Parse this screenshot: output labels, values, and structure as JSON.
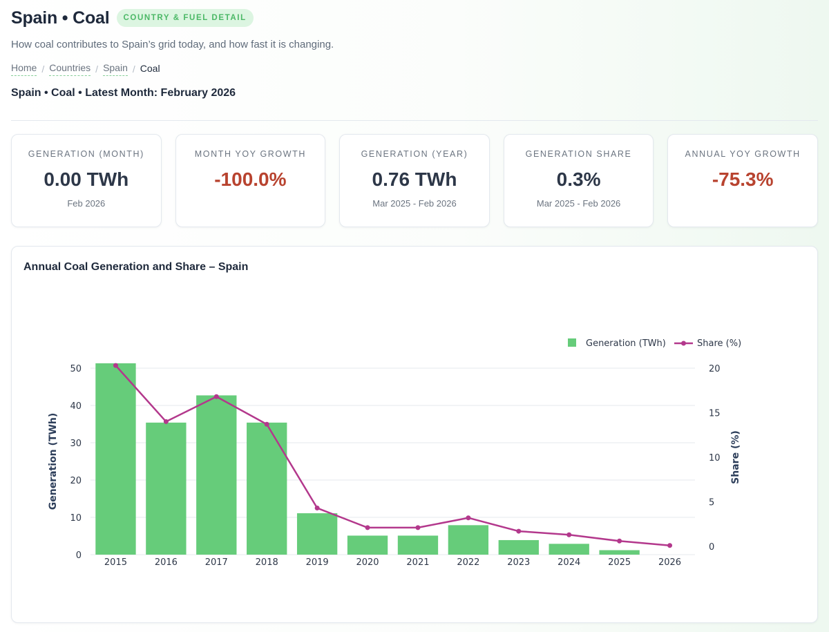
{
  "header": {
    "title": "Spain • Coal",
    "badge": "COUNTRY & FUEL DETAIL",
    "subtitle": "How coal contributes to Spain’s grid today, and how fast it is changing.",
    "breadcrumb": {
      "items": [
        "Home",
        "Countries",
        "Spain"
      ],
      "separator": "/",
      "current": "Coal"
    },
    "context": "Spain • Coal • Latest Month: February 2026"
  },
  "kpis": [
    {
      "label": "GENERATION (MONTH)",
      "value": "0.00 TWh",
      "sub": "Feb 2026",
      "tone": "neutral"
    },
    {
      "label": "MONTH YOY GROWTH",
      "value": "-100.0%",
      "sub": "",
      "tone": "negative"
    },
    {
      "label": "GENERATION (YEAR)",
      "value": "0.76 TWh",
      "sub": "Mar 2025 - Feb 2026",
      "tone": "neutral"
    },
    {
      "label": "GENERATION SHARE",
      "value": "0.3%",
      "sub": "Mar 2025 - Feb 2026",
      "tone": "neutral"
    },
    {
      "label": "ANNUAL YOY GROWTH",
      "value": "-75.3%",
      "sub": "",
      "tone": "negative"
    }
  ],
  "colors": {
    "bar": "#66cc7a",
    "line": "#b3388c",
    "negative": "#b8432f",
    "accent": "#4bb866"
  },
  "chart_data": {
    "type": "bar",
    "title": "Annual Coal Generation and Share – Spain",
    "categories": [
      "2015",
      "2016",
      "2017",
      "2018",
      "2019",
      "2020",
      "2021",
      "2022",
      "2023",
      "2024",
      "2025",
      "2026"
    ],
    "series": [
      {
        "name": "Generation (TWh)",
        "type": "bar",
        "axis": "left",
        "values": [
          51.3,
          35.4,
          42.7,
          35.4,
          11.1,
          5.1,
          5.1,
          7.9,
          3.9,
          2.9,
          1.2,
          0.0
        ]
      },
      {
        "name": "Share (%)",
        "type": "line",
        "axis": "right",
        "values": [
          20.3,
          14.0,
          16.8,
          13.7,
          4.3,
          2.1,
          2.1,
          3.2,
          1.7,
          1.3,
          0.6,
          0.1
        ]
      }
    ],
    "ylabel": "Generation (TWh)",
    "y2label": "Share (%)",
    "ylim": [
      0,
      50
    ],
    "yticks": [
      0,
      10,
      20,
      30,
      40,
      50
    ],
    "y2lim": [
      0,
      20
    ],
    "y2ticks": [
      0,
      5,
      10,
      15,
      20
    ],
    "grid": true,
    "legend": "top-right"
  }
}
